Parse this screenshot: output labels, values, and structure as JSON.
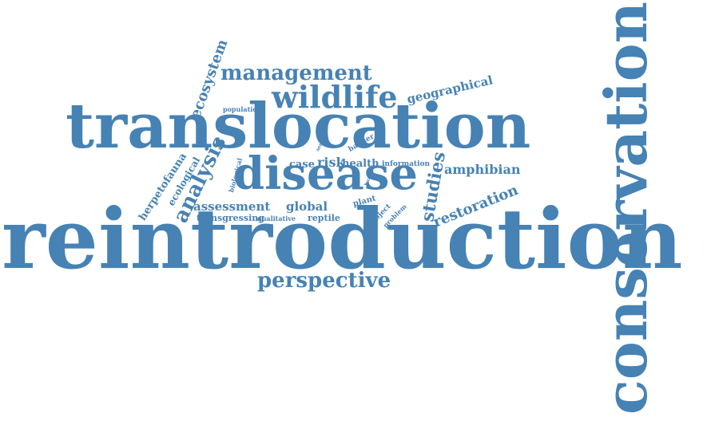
{
  "colors": {
    "word": "#4682b4",
    "background": "#ffffff"
  },
  "words": {
    "reintroduction": "reintroduction",
    "translocation": "translocation",
    "conservation": "conservation",
    "disease": "disease",
    "wildlife": "wildlife",
    "management": "management",
    "perspective": "perspective",
    "analysis": "analysis",
    "studies": "studies",
    "ecosystem": "ecosystem",
    "amphibian": "amphibian",
    "restoration": "restoration",
    "geographical": "geographical",
    "assessment": "assessment",
    "global": "global",
    "risk": "risk",
    "health": "health",
    "case": "case",
    "herpetofauna": "herpetofauna",
    "ecological": "ecological",
    "information": "information",
    "transgressing": "transgressing",
    "qualitative": "qualitative",
    "reptile": "reptile",
    "plant": "plant",
    "barrier": "barrier",
    "project": "project",
    "problem": "problem",
    "population": "population",
    "biological": "biological",
    "series": "series",
    "hazard": "hazard"
  }
}
